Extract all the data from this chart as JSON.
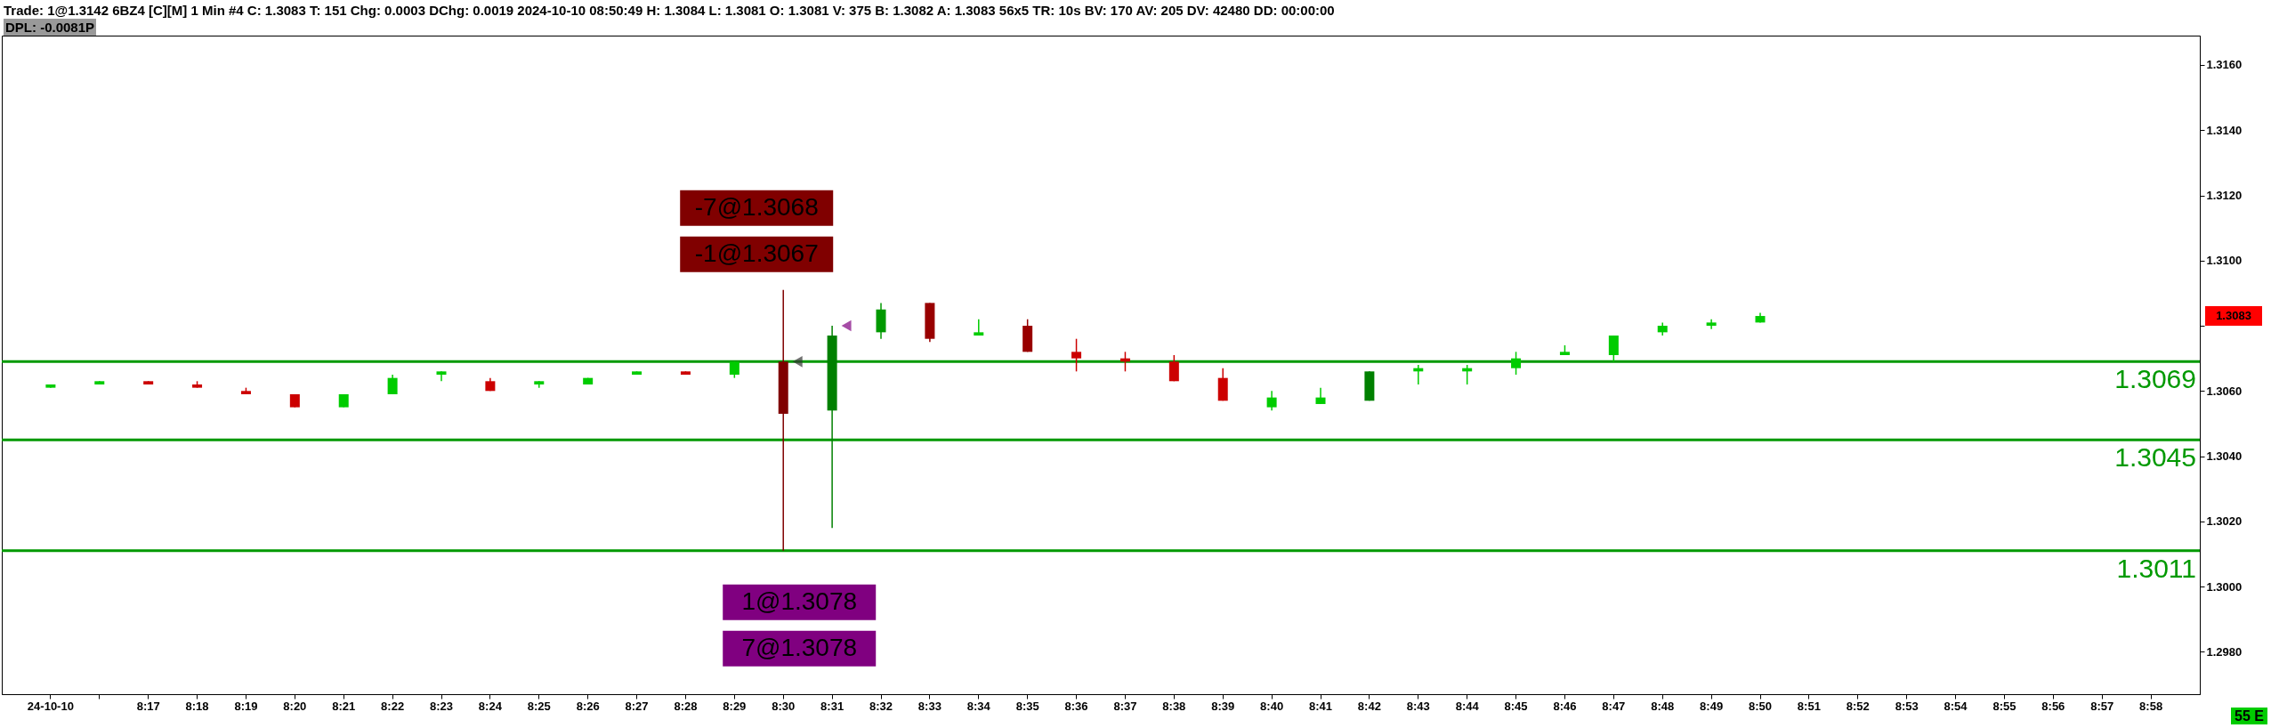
{
  "chart_data": {
    "type": "candlestick",
    "title": "Trade: 1@1.3142 6BZ4 [C][M]  1 Min  #4 C: 1.3083 T: 151 Chg: 0.0003 DChg: 0.0019 2024-10-10 08:50:49 H: 1.3084 L: 1.3081 O: 1.3081 V: 375 B: 1.3082 A: 1.3083 56x5 TR: 10s BV: 170 AV: 205 DV: 42480 DD: 00:00:00",
    "subtitle": "DPL: -0.0081P",
    "categories": [
      "24-10-10",
      null,
      "8:17",
      "8:18",
      "8:19",
      "8:20",
      "8:21",
      "8:22",
      "8:23",
      "8:24",
      "8:25",
      "8:26",
      "8:27",
      "8:28",
      "8:29",
      "8:30",
      "8:31",
      "8:32",
      "8:33",
      "8:34",
      "8:35",
      "8:36",
      "8:37",
      "8:38",
      "8:39",
      "8:40",
      "8:41",
      "8:42",
      "8:43",
      "8:44",
      "8:45",
      "8:46",
      "8:47",
      "8:48",
      "8:49",
      "8:50",
      "8:51",
      "8:52",
      "8:53",
      "8:54",
      "8:55",
      "8:56",
      "8:57",
      "8:58"
    ],
    "ohlc": [
      [
        1.3061,
        1.3062,
        1.3061,
        1.3062
      ],
      [
        1.3062,
        1.3063,
        1.3062,
        1.3063
      ],
      [
        1.3063,
        1.3063,
        1.3062,
        1.3062
      ],
      [
        1.3062,
        1.3063,
        1.3061,
        1.3061
      ],
      [
        1.306,
        1.3061,
        1.3059,
        1.3059
      ],
      [
        1.3059,
        1.3059,
        1.3055,
        1.3055
      ],
      [
        1.3055,
        1.3059,
        1.3055,
        1.3059
      ],
      [
        1.3059,
        1.3065,
        1.3059,
        1.3064
      ],
      [
        1.3065,
        1.3066,
        1.3063,
        1.3066
      ],
      [
        1.3063,
        1.3064,
        1.306,
        1.306
      ],
      [
        1.3062,
        1.3063,
        1.3061,
        1.3063
      ],
      [
        1.3062,
        1.3064,
        1.3062,
        1.3064
      ],
      [
        1.3065,
        1.3066,
        1.3065,
        1.3066
      ],
      [
        1.3066,
        1.3066,
        1.3065,
        1.3065
      ],
      [
        1.3065,
        1.3069,
        1.3064,
        1.3069
      ],
      [
        1.3069,
        1.3091,
        1.3011,
        1.3053
      ],
      [
        1.3054,
        1.308,
        1.3018,
        1.3077
      ],
      [
        1.3078,
        1.3087,
        1.3076,
        1.3085
      ],
      [
        1.3087,
        1.3087,
        1.3075,
        1.3076
      ],
      [
        1.3077,
        1.3082,
        1.3077,
        1.3078
      ],
      [
        1.308,
        1.3082,
        1.3072,
        1.3072
      ],
      [
        1.3072,
        1.3076,
        1.3066,
        1.307
      ],
      [
        1.307,
        1.3072,
        1.3066,
        1.3069
      ],
      [
        1.3069,
        1.3071,
        1.3063,
        1.3063
      ],
      [
        1.3064,
        1.3067,
        1.3057,
        1.3057
      ],
      [
        1.3055,
        1.306,
        1.3054,
        1.3058
      ],
      [
        1.3056,
        1.3061,
        1.3056,
        1.3058
      ],
      [
        1.3057,
        1.3066,
        1.3057,
        1.3066
      ],
      [
        1.3066,
        1.3068,
        1.3062,
        1.3067
      ],
      [
        1.3066,
        1.3068,
        1.3062,
        1.3067
      ],
      [
        1.3067,
        1.3072,
        1.3065,
        1.307
      ],
      [
        1.3071,
        1.3074,
        1.3071,
        1.3072
      ],
      [
        1.3071,
        1.3077,
        1.3069,
        1.3077
      ],
      [
        1.3078,
        1.3081,
        1.3077,
        1.308
      ],
      [
        1.308,
        1.3082,
        1.3079,
        1.3081
      ],
      [
        1.3081,
        1.3084,
        1.3081,
        1.3083
      ],
      null,
      null,
      null,
      null,
      null,
      null,
      null,
      null
    ],
    "colors": [
      "#00cc00",
      "#00cc00",
      "#cc0000",
      "#cc0000",
      "#cc0000",
      "#cc0000",
      "#00cc00",
      "#00cc00",
      "#00cc00",
      "#cc0000",
      "#00cc00",
      "#00cc00",
      "#00cc00",
      "#cc0000",
      "#00cc00",
      "#800000",
      "#008000",
      "#009900",
      "#990000",
      "#00cc00",
      "#990000",
      "#cc0000",
      "#cc0000",
      "#cc0000",
      "#cc0000",
      "#00cc00",
      "#00cc00",
      "#008000",
      "#00cc00",
      "#00cc00",
      "#00cc00",
      "#00cc00",
      "#00cc00",
      "#00cc00",
      "#00cc00",
      "#00cc00",
      null,
      null,
      null,
      null,
      null,
      null,
      null,
      null
    ],
    "series": [
      {
        "type": "scatter",
        "marker": "triangle",
        "x": [
          "8:30",
          "8:31"
        ],
        "values": [
          1.3069,
          1.308
        ],
        "colors": [
          "#333333",
          "#800080"
        ]
      }
    ],
    "ylim": [
      1.2967,
      1.3169
    ],
    "yticks": [
      {
        "value": 1.298,
        "label": "1.2980"
      },
      {
        "value": 1.3,
        "label": "1.3000"
      },
      {
        "value": 1.302,
        "label": "1.3020"
      },
      {
        "value": 1.304,
        "label": "1.3040"
      },
      {
        "value": 1.306,
        "label": "1.3060"
      },
      {
        "value": 1.308,
        "label": null
      },
      {
        "value": 1.31,
        "label": "1.3100"
      },
      {
        "value": 1.312,
        "label": "1.3120"
      },
      {
        "value": 1.314,
        "label": "1.3140"
      },
      {
        "value": 1.316,
        "label": "1.3160"
      }
    ],
    "ref_lines": [
      {
        "axis": "y",
        "value": 1.3069,
        "label": "1.3069",
        "color": "#009900"
      },
      {
        "axis": "y",
        "value": 1.3045,
        "label": "1.3045",
        "color": "#009900"
      },
      {
        "axis": "y",
        "value": 1.3011,
        "label": "1.3011",
        "color": "#009900"
      }
    ],
    "annotations": [
      "-7@1.3068",
      "-1@1.3067",
      "1@1.3078",
      "7@1.3078",
      "1.3083",
      "55 E"
    ],
    "grid": false
  }
}
